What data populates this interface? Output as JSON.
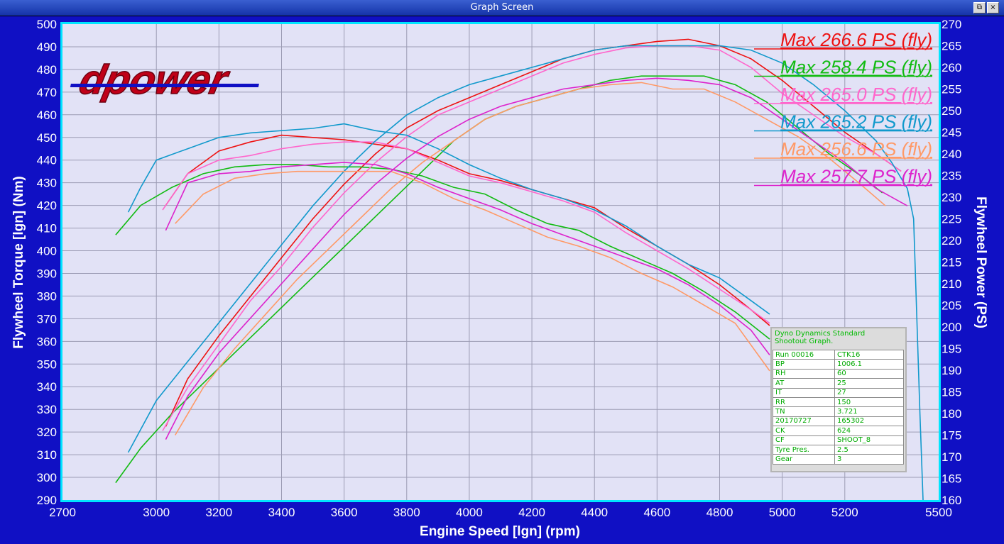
{
  "window": {
    "title": "Graph Screen",
    "restore_glyph": "⧉",
    "close_glyph": "×"
  },
  "logo_text": "dpower",
  "chart_data": {
    "type": "line",
    "xlabel": "Engine Speed [lgn] (rpm)",
    "ylabel_left": "Flywheel Torque [lgn] (Nm)",
    "ylabel_right": "Flywheel Power (PS)",
    "xlim": [
      2700,
      5500
    ],
    "ylim_left": [
      290,
      500
    ],
    "ylim_right": [
      160,
      270
    ],
    "x_ticks": [
      2700,
      3000,
      3200,
      3400,
      3600,
      3800,
      4000,
      4200,
      4400,
      4600,
      4800,
      5000,
      5200,
      5500
    ],
    "y_ticks_left": [
      290,
      300,
      310,
      320,
      330,
      340,
      350,
      360,
      370,
      380,
      390,
      400,
      410,
      420,
      430,
      440,
      450,
      460,
      470,
      480,
      490,
      500
    ],
    "y_ticks_right": [
      160,
      165,
      170,
      175,
      180,
      185,
      190,
      195,
      200,
      205,
      210,
      215,
      220,
      225,
      230,
      235,
      240,
      245,
      250,
      255,
      260,
      265,
      270
    ],
    "grid": true,
    "background": "#e2e2f6",
    "legend": [
      {
        "text": "Max 266.6 PS (fly)",
        "color": "#ee1111"
      },
      {
        "text": "Max 258.4 PS (fly)",
        "color": "#11bb11"
      },
      {
        "text": "Max 265.0 PS (fly)",
        "color": "#ff66cc"
      },
      {
        "text": "Max 265.2 PS (fly)",
        "color": "#1199cc"
      },
      {
        "text": "Max 256.6 PS (fly)",
        "color": "#ff9966"
      },
      {
        "text": "Max 257.7 PS (fly)",
        "color": "#dd22cc"
      }
    ],
    "series": [
      {
        "color": "#ee1111",
        "torque": [
          [
            3030,
            420
          ],
          [
            3100,
            434
          ],
          [
            3200,
            444
          ],
          [
            3300,
            448
          ],
          [
            3400,
            451
          ],
          [
            3500,
            450
          ],
          [
            3600,
            449
          ],
          [
            3700,
            447
          ],
          [
            3800,
            445
          ],
          [
            3900,
            440
          ],
          [
            4000,
            434
          ],
          [
            4100,
            431
          ],
          [
            4200,
            427
          ],
          [
            4300,
            423
          ],
          [
            4400,
            419
          ],
          [
            4500,
            410
          ],
          [
            4600,
            402
          ],
          [
            4700,
            394
          ],
          [
            4800,
            385
          ],
          [
            4900,
            374
          ],
          [
            4960,
            367
          ]
        ],
        "power": [
          [
            3030,
            177
          ],
          [
            3100,
            188
          ],
          [
            3200,
            198
          ],
          [
            3300,
            207
          ],
          [
            3400,
            216
          ],
          [
            3500,
            225
          ],
          [
            3600,
            233
          ],
          [
            3700,
            240
          ],
          [
            3800,
            246
          ],
          [
            3900,
            250
          ],
          [
            4000,
            253
          ],
          [
            4100,
            256
          ],
          [
            4200,
            259
          ],
          [
            4300,
            262
          ],
          [
            4400,
            264
          ],
          [
            4500,
            265
          ],
          [
            4600,
            266
          ],
          [
            4700,
            266.5
          ],
          [
            4800,
            265
          ],
          [
            4900,
            262
          ],
          [
            5000,
            257
          ],
          [
            5100,
            251
          ],
          [
            5200,
            245
          ],
          [
            5300,
            240
          ],
          [
            5380,
            236
          ]
        ]
      },
      {
        "color": "#11bb11",
        "torque": [
          [
            2870,
            407
          ],
          [
            2950,
            420
          ],
          [
            3050,
            428
          ],
          [
            3150,
            434
          ],
          [
            3250,
            437
          ],
          [
            3350,
            438
          ],
          [
            3450,
            438
          ],
          [
            3550,
            437
          ],
          [
            3650,
            437
          ],
          [
            3750,
            436
          ],
          [
            3850,
            433
          ],
          [
            3950,
            428
          ],
          [
            4050,
            425
          ],
          [
            4150,
            418
          ],
          [
            4250,
            412
          ],
          [
            4350,
            409
          ],
          [
            4450,
            402
          ],
          [
            4550,
            396
          ],
          [
            4650,
            390
          ],
          [
            4750,
            382
          ],
          [
            4850,
            373
          ],
          [
            4960,
            361
          ]
        ],
        "power": [
          [
            2870,
            164
          ],
          [
            2950,
            172
          ],
          [
            3050,
            180
          ],
          [
            3150,
            187
          ],
          [
            3250,
            194
          ],
          [
            3350,
            201
          ],
          [
            3450,
            208
          ],
          [
            3550,
            215
          ],
          [
            3650,
            222
          ],
          [
            3750,
            229
          ],
          [
            3850,
            236
          ],
          [
            3950,
            243
          ],
          [
            4050,
            248
          ],
          [
            4150,
            251
          ],
          [
            4250,
            253
          ],
          [
            4350,
            255
          ],
          [
            4450,
            257
          ],
          [
            4550,
            258
          ],
          [
            4650,
            258
          ],
          [
            4750,
            258
          ],
          [
            4850,
            256
          ],
          [
            4950,
            252
          ],
          [
            5050,
            246
          ],
          [
            5150,
            240
          ],
          [
            5250,
            235
          ],
          [
            5320,
            231
          ]
        ]
      },
      {
        "color": "#ff66cc",
        "torque": [
          [
            3020,
            418
          ],
          [
            3100,
            434
          ],
          [
            3200,
            440
          ],
          [
            3300,
            442
          ],
          [
            3400,
            445
          ],
          [
            3500,
            447
          ],
          [
            3600,
            448
          ],
          [
            3700,
            448
          ],
          [
            3800,
            445
          ],
          [
            3900,
            439
          ],
          [
            4000,
            433
          ],
          [
            4100,
            430
          ],
          [
            4200,
            426
          ],
          [
            4300,
            422
          ],
          [
            4400,
            417
          ],
          [
            4500,
            408
          ],
          [
            4600,
            400
          ],
          [
            4700,
            392
          ],
          [
            4800,
            383
          ],
          [
            4900,
            374
          ],
          [
            4960,
            368
          ]
        ],
        "power": [
          [
            3020,
            176
          ],
          [
            3100,
            186
          ],
          [
            3200,
            196
          ],
          [
            3300,
            206
          ],
          [
            3400,
            214
          ],
          [
            3500,
            223
          ],
          [
            3600,
            231
          ],
          [
            3700,
            238
          ],
          [
            3800,
            244
          ],
          [
            3900,
            249
          ],
          [
            4000,
            252
          ],
          [
            4100,
            255
          ],
          [
            4200,
            258
          ],
          [
            4300,
            261
          ],
          [
            4400,
            263
          ],
          [
            4500,
            264.5
          ],
          [
            4600,
            265
          ],
          [
            4700,
            265
          ],
          [
            4800,
            264
          ],
          [
            4900,
            260
          ],
          [
            5000,
            254
          ],
          [
            5100,
            249
          ],
          [
            5200,
            244
          ],
          [
            5300,
            240
          ],
          [
            5380,
            236
          ]
        ]
      },
      {
        "color": "#1199cc",
        "torque": [
          [
            2910,
            417
          ],
          [
            2950,
            428
          ],
          [
            3000,
            440
          ],
          [
            3100,
            445
          ],
          [
            3200,
            450
          ],
          [
            3300,
            452
          ],
          [
            3400,
            453
          ],
          [
            3500,
            454
          ],
          [
            3600,
            456
          ],
          [
            3700,
            453
          ],
          [
            3800,
            451
          ],
          [
            3900,
            445
          ],
          [
            4000,
            438
          ],
          [
            4100,
            432
          ],
          [
            4200,
            427
          ],
          [
            4300,
            423
          ],
          [
            4400,
            418
          ],
          [
            4500,
            411
          ],
          [
            4600,
            402
          ],
          [
            4700,
            394
          ],
          [
            4800,
            388
          ],
          [
            4900,
            378
          ],
          [
            4960,
            372
          ]
        ],
        "power": [
          [
            2910,
            171
          ],
          [
            3000,
            183
          ],
          [
            3100,
            192
          ],
          [
            3200,
            201
          ],
          [
            3300,
            210
          ],
          [
            3400,
            219
          ],
          [
            3500,
            228
          ],
          [
            3600,
            236
          ],
          [
            3700,
            243
          ],
          [
            3800,
            249
          ],
          [
            3900,
            253
          ],
          [
            4000,
            256
          ],
          [
            4100,
            258
          ],
          [
            4200,
            260
          ],
          [
            4300,
            262
          ],
          [
            4400,
            264
          ],
          [
            4500,
            265
          ],
          [
            4600,
            265
          ],
          [
            4700,
            265
          ],
          [
            4800,
            265
          ],
          [
            4900,
            264
          ],
          [
            5000,
            261
          ],
          [
            5100,
            256
          ],
          [
            5200,
            250
          ],
          [
            5300,
            243
          ],
          [
            5350,
            238
          ],
          [
            5400,
            232
          ],
          [
            5420,
            225
          ],
          [
            5440,
            180
          ],
          [
            5450,
            160
          ]
        ]
      },
      {
        "color": "#ff9966",
        "torque": [
          [
            3060,
            412
          ],
          [
            3150,
            425
          ],
          [
            3250,
            432
          ],
          [
            3350,
            434
          ],
          [
            3450,
            435
          ],
          [
            3550,
            435
          ],
          [
            3650,
            435
          ],
          [
            3750,
            435
          ],
          [
            3850,
            430
          ],
          [
            3950,
            423
          ],
          [
            4050,
            418
          ],
          [
            4150,
            412
          ],
          [
            4250,
            406
          ],
          [
            4350,
            402
          ],
          [
            4450,
            397
          ],
          [
            4550,
            390
          ],
          [
            4650,
            384
          ],
          [
            4750,
            376
          ],
          [
            4850,
            368
          ],
          [
            4960,
            347
          ]
        ],
        "power": [
          [
            3060,
            175
          ],
          [
            3150,
            186
          ],
          [
            3250,
            195
          ],
          [
            3350,
            203
          ],
          [
            3450,
            211
          ],
          [
            3550,
            218
          ],
          [
            3650,
            225
          ],
          [
            3750,
            232
          ],
          [
            3850,
            238
          ],
          [
            3950,
            243
          ],
          [
            4050,
            248
          ],
          [
            4150,
            251
          ],
          [
            4250,
            253
          ],
          [
            4350,
            255
          ],
          [
            4450,
            256
          ],
          [
            4550,
            256.5
          ],
          [
            4650,
            255
          ],
          [
            4750,
            255
          ],
          [
            4850,
            252
          ],
          [
            4950,
            248
          ],
          [
            5050,
            244
          ],
          [
            5150,
            239
          ],
          [
            5250,
            233
          ],
          [
            5330,
            228
          ]
        ]
      },
      {
        "color": "#dd22cc",
        "torque": [
          [
            3030,
            409
          ],
          [
            3100,
            430
          ],
          [
            3200,
            434
          ],
          [
            3300,
            435
          ],
          [
            3400,
            437
          ],
          [
            3500,
            438
          ],
          [
            3600,
            439
          ],
          [
            3700,
            438
          ],
          [
            3800,
            434
          ],
          [
            3900,
            428
          ],
          [
            4000,
            423
          ],
          [
            4100,
            418
          ],
          [
            4200,
            412
          ],
          [
            4300,
            407
          ],
          [
            4400,
            402
          ],
          [
            4500,
            397
          ],
          [
            4600,
            392
          ],
          [
            4700,
            385
          ],
          [
            4800,
            376
          ],
          [
            4900,
            365
          ],
          [
            4960,
            354
          ]
        ],
        "power": [
          [
            3030,
            174
          ],
          [
            3100,
            184
          ],
          [
            3200,
            194
          ],
          [
            3300,
            202
          ],
          [
            3400,
            210
          ],
          [
            3500,
            218
          ],
          [
            3600,
            226
          ],
          [
            3700,
            233
          ],
          [
            3800,
            239
          ],
          [
            3900,
            244
          ],
          [
            4000,
            248
          ],
          [
            4100,
            251
          ],
          [
            4200,
            253
          ],
          [
            4300,
            255
          ],
          [
            4400,
            256
          ],
          [
            4500,
            257
          ],
          [
            4600,
            257.5
          ],
          [
            4700,
            257
          ],
          [
            4800,
            256
          ],
          [
            4900,
            253
          ],
          [
            5000,
            248
          ],
          [
            5100,
            243
          ],
          [
            5200,
            238
          ],
          [
            5300,
            232
          ],
          [
            5400,
            228
          ]
        ]
      }
    ]
  },
  "info_panel": {
    "title_line1": "Dyno Dynamics Standard",
    "title_line2": "Shootout Graph.",
    "rows": [
      {
        "key": "Run 00016",
        "value": "CTK16"
      },
      {
        "key": "BP",
        "value": "1006.1"
      },
      {
        "key": "RH",
        "value": "60"
      },
      {
        "key": "AT",
        "value": "25"
      },
      {
        "key": "IT",
        "value": "27"
      },
      {
        "key": "RR",
        "value": "150"
      },
      {
        "key": "TN",
        "value": "3.721"
      },
      {
        "key": "20170727",
        "value": "165302"
      },
      {
        "key": "CK",
        "value": "624"
      },
      {
        "key": "CF",
        "value": "SHOOT_8"
      },
      {
        "key": "Tyre Pres.",
        "value": "2.5"
      },
      {
        "key": "Gear",
        "value": "3"
      }
    ]
  }
}
